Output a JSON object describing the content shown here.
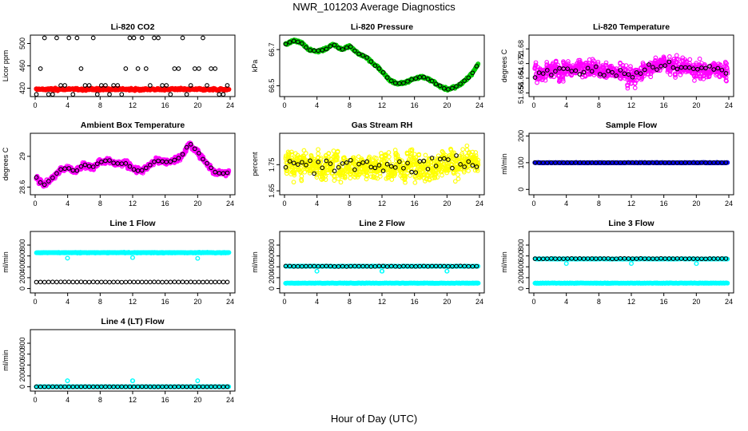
{
  "page": {
    "title": "NWR_101203  Average Diagnostics",
    "x_caption": "Hour of Day (UTC)"
  },
  "colors": {
    "black": "#000000",
    "red": "#ff0000",
    "green": "#00cc00",
    "magenta": "#ff00ff",
    "yellow": "#ffff00",
    "cyan": "#00ffff",
    "blue": "#0000ff"
  },
  "chart_data": [
    {
      "id": "co2",
      "type": "scatter",
      "title": "Li-820 CO2",
      "ylabel": "Licor ppm",
      "xlim": [
        0,
        24
      ],
      "xticks": [
        0,
        4,
        8,
        12,
        16,
        20,
        24
      ],
      "ylim": [
        405,
        515
      ],
      "yticks": [
        420,
        460,
        500
      ],
      "series": [
        {
          "name": "all",
          "color": "#ff0000",
          "mode": "band",
          "center": 418,
          "spread": 2.5,
          "density": 3
        },
        {
          "name": "avg",
          "color": "#000000",
          "mode": "levels",
          "levels": [
            409,
            425,
            455,
            510
          ],
          "step": 0.5
        }
      ]
    },
    {
      "id": "pressure",
      "type": "scatter",
      "title": "Li-820 Pressure",
      "ylabel": "kPa",
      "xlim": [
        0,
        24
      ],
      "xticks": [
        0,
        4,
        8,
        12,
        16,
        20,
        24
      ],
      "ylim": [
        66.44,
        66.78
      ],
      "yticks": [
        66.5,
        66.7
      ],
      "series": [
        {
          "name": "all",
          "color": "#00cc00",
          "mode": "curve",
          "noise": 0.008,
          "density": 3,
          "knots": [
            [
              0.3,
              66.73
            ],
            [
              1,
              66.75
            ],
            [
              2,
              66.74
            ],
            [
              3,
              66.7
            ],
            [
              4,
              66.69
            ],
            [
              5,
              66.7
            ],
            [
              6,
              66.73
            ],
            [
              7,
              66.7
            ],
            [
              8,
              66.72
            ],
            [
              9,
              66.68
            ],
            [
              10,
              66.66
            ],
            [
              11,
              66.62
            ],
            [
              12,
              66.58
            ],
            [
              13,
              66.53
            ],
            [
              14,
              66.51
            ],
            [
              15,
              66.52
            ],
            [
              16,
              66.54
            ],
            [
              17,
              66.55
            ],
            [
              18,
              66.53
            ],
            [
              19,
              66.5
            ],
            [
              20,
              66.48
            ],
            [
              21,
              66.49
            ],
            [
              22,
              66.52
            ],
            [
              23,
              66.56
            ],
            [
              23.8,
              66.62
            ]
          ]
        },
        {
          "name": "avg",
          "color": "#000000",
          "mode": "curve",
          "noise": 0.004,
          "density": 1,
          "step": 0.5,
          "knots": [
            [
              0.3,
              66.73
            ],
            [
              1,
              66.75
            ],
            [
              2,
              66.74
            ],
            [
              3,
              66.7
            ],
            [
              4,
              66.69
            ],
            [
              5,
              66.7
            ],
            [
              6,
              66.73
            ],
            [
              7,
              66.7
            ],
            [
              8,
              66.72
            ],
            [
              9,
              66.68
            ],
            [
              10,
              66.66
            ],
            [
              11,
              66.62
            ],
            [
              12,
              66.58
            ],
            [
              13,
              66.53
            ],
            [
              14,
              66.51
            ],
            [
              15,
              66.52
            ],
            [
              16,
              66.54
            ],
            [
              17,
              66.55
            ],
            [
              18,
              66.53
            ],
            [
              19,
              66.5
            ],
            [
              20,
              66.48
            ],
            [
              21,
              66.49
            ],
            [
              22,
              66.52
            ],
            [
              23,
              66.56
            ],
            [
              23.8,
              66.62
            ]
          ]
        }
      ]
    },
    {
      "id": "li820temp",
      "type": "scatter",
      "title": "Li-820 Temperature",
      "ylabel": "degrees C",
      "xlim": [
        0,
        24
      ],
      "xticks": [
        0,
        4,
        8,
        12,
        16,
        20,
        24
      ],
      "ylim": [
        51.654,
        51.6875
      ],
      "yticks": [
        51.656,
        51.664,
        51.672,
        51.68
      ],
      "yticklabels": [
        "51.656",
        "51.664",
        "51.672",
        "51.68"
      ],
      "series": [
        {
          "name": "all",
          "color": "#ff00ff",
          "mode": "curve",
          "noise": 0.0065,
          "density": 2.5,
          "knots": [
            [
              0,
              51.667
            ],
            [
              4,
              51.669
            ],
            [
              8,
              51.668
            ],
            [
              12,
              51.666
            ],
            [
              16,
              51.672
            ],
            [
              20,
              51.669
            ],
            [
              24,
              51.668
            ]
          ]
        },
        {
          "name": "avg",
          "color": "#000000",
          "mode": "curve",
          "noise": 0.004,
          "density": 1,
          "step": 0.5,
          "knots": [
            [
              0,
              51.667
            ],
            [
              4,
              51.669
            ],
            [
              8,
              51.668
            ],
            [
              12,
              51.666
            ],
            [
              16,
              51.672
            ],
            [
              20,
              51.669
            ],
            [
              24,
              51.668
            ]
          ]
        }
      ]
    },
    {
      "id": "ambient",
      "type": "scatter",
      "title": "Ambient Box Temperature",
      "ylabel": "degrees C",
      "xlim": [
        0,
        24
      ],
      "xticks": [
        0,
        4,
        8,
        12,
        16,
        20,
        24
      ],
      "ylim": [
        28.5,
        29.3
      ],
      "yticks": [
        28.6,
        29.0
      ],
      "series": [
        {
          "name": "all",
          "color": "#ff00ff",
          "mode": "curve",
          "noise": 0.045,
          "density": 4,
          "knots": [
            [
              0,
              28.75
            ],
            [
              1,
              28.62
            ],
            [
              2,
              28.7
            ],
            [
              3,
              28.82
            ],
            [
              4,
              28.85
            ],
            [
              5,
              28.8
            ],
            [
              6,
              28.9
            ],
            [
              7,
              28.85
            ],
            [
              8,
              28.93
            ],
            [
              9,
              28.95
            ],
            [
              10,
              28.9
            ],
            [
              11,
              28.92
            ],
            [
              12,
              28.85
            ],
            [
              13,
              28.8
            ],
            [
              14,
              28.88
            ],
            [
              15,
              28.95
            ],
            [
              16,
              28.92
            ],
            [
              17,
              28.95
            ],
            [
              18,
              29.0
            ],
            [
              19,
              29.18
            ],
            [
              20,
              29.05
            ],
            [
              21,
              28.92
            ],
            [
              22,
              28.8
            ],
            [
              23,
              28.78
            ],
            [
              24,
              28.8
            ]
          ]
        },
        {
          "name": "avg",
          "color": "#000000",
          "mode": "curve",
          "noise": 0.015,
          "density": 1,
          "step": 0.5,
          "knots": [
            [
              0,
              28.75
            ],
            [
              1,
              28.62
            ],
            [
              2,
              28.7
            ],
            [
              3,
              28.82
            ],
            [
              4,
              28.85
            ],
            [
              5,
              28.8
            ],
            [
              6,
              28.9
            ],
            [
              7,
              28.85
            ],
            [
              8,
              28.93
            ],
            [
              9,
              28.95
            ],
            [
              10,
              28.9
            ],
            [
              11,
              28.92
            ],
            [
              12,
              28.85
            ],
            [
              13,
              28.8
            ],
            [
              14,
              28.88
            ],
            [
              15,
              28.95
            ],
            [
              16,
              28.92
            ],
            [
              17,
              28.95
            ],
            [
              18,
              29.0
            ],
            [
              19,
              29.18
            ],
            [
              20,
              29.05
            ],
            [
              21,
              28.92
            ],
            [
              22,
              28.8
            ],
            [
              23,
              28.78
            ],
            [
              24,
              28.8
            ]
          ]
        }
      ]
    },
    {
      "id": "rh",
      "type": "scatter",
      "title": "Gas Stream RH",
      "ylabel": "percent",
      "xlim": [
        0,
        24
      ],
      "xticks": [
        0,
        4,
        8,
        12,
        16,
        20,
        24
      ],
      "ylim": [
        1.635,
        1.87
      ],
      "yticks": [
        1.65,
        1.75
      ],
      "series": [
        {
          "name": "all",
          "color": "#ffff00",
          "mode": "curve",
          "noise": 0.075,
          "density": 3,
          "knots": [
            [
              0,
              1.75
            ],
            [
              12,
              1.74
            ],
            [
              24,
              1.76
            ]
          ]
        },
        {
          "name": "avg",
          "color": "#000000",
          "mode": "curve",
          "noise": 0.045,
          "density": 1,
          "step": 0.5,
          "knots": [
            [
              0,
              1.75
            ],
            [
              12,
              1.74
            ],
            [
              24,
              1.76
            ]
          ]
        }
      ]
    },
    {
      "id": "sampleflow",
      "type": "scatter",
      "title": "Sample Flow",
      "ylabel": "ml/min",
      "xlim": [
        0,
        24
      ],
      "xticks": [
        0,
        4,
        8,
        12,
        16,
        20,
        24
      ],
      "ylim": [
        -20,
        210
      ],
      "yticks": [
        0,
        100,
        200
      ],
      "series": [
        {
          "name": "all",
          "color": "#0000ff",
          "mode": "band",
          "center": 100,
          "spread": 1,
          "density": 3
        },
        {
          "name": "avg",
          "color": "#000000",
          "mode": "band",
          "center": 100,
          "spread": 0.5,
          "density": 1,
          "step": 0.5
        }
      ]
    },
    {
      "id": "line1",
      "type": "scatter",
      "title": "Line 1 Flow",
      "ylabel": "ml/min",
      "xlim": [
        0,
        24
      ],
      "xticks": [
        0,
        4,
        8,
        12,
        16,
        20,
        24
      ],
      "ylim": [
        -80,
        1050
      ],
      "yticks": [
        0,
        200,
        400,
        600,
        800
      ],
      "series": [
        {
          "name": "line1",
          "color": "#00ffff",
          "mode": "band",
          "center": 660,
          "spread": 8,
          "density": 3,
          "spikes": [
            [
              4,
              560
            ],
            [
              12,
              570
            ],
            [
              20,
              555
            ]
          ]
        },
        {
          "name": "avg",
          "color": "#000000",
          "mode": "band",
          "center": 120,
          "spread": 4,
          "density": 1,
          "step": 0.5
        }
      ]
    },
    {
      "id": "line2",
      "type": "scatter",
      "title": "Line 2 Flow",
      "ylabel": "ml/min",
      "xlim": [
        0,
        24
      ],
      "xticks": [
        0,
        4,
        8,
        12,
        16,
        20,
        24
      ],
      "ylim": [
        -80,
        1050
      ],
      "yticks": [
        0,
        200,
        400,
        600,
        800
      ],
      "series": [
        {
          "name": "line2",
          "color": "#00ffff",
          "mode": "band",
          "center": 100,
          "spread": 4,
          "density": 3,
          "spikes": [
            [
              4,
              320
            ],
            [
              12,
              320
            ],
            [
              20,
              320
            ]
          ]
        },
        {
          "name": "line2_hi",
          "color": "#00ffff",
          "mode": "band",
          "center": 410,
          "spread": 5,
          "density": 2
        },
        {
          "name": "avg",
          "color": "#000000",
          "mode": "band",
          "center": 410,
          "spread": 6,
          "density": 1,
          "step": 0.5
        }
      ]
    },
    {
      "id": "line3",
      "type": "scatter",
      "title": "Line 3 Flow",
      "ylabel": "ml/min",
      "xlim": [
        0,
        24
      ],
      "xticks": [
        0,
        4,
        8,
        12,
        16,
        20,
        24
      ],
      "ylim": [
        -80,
        1050
      ],
      "yticks": [
        0,
        200,
        400,
        600,
        800
      ],
      "series": [
        {
          "name": "line3",
          "color": "#00ffff",
          "mode": "band",
          "center": 100,
          "spread": 4,
          "density": 3
        },
        {
          "name": "line3_hi",
          "color": "#00ffff",
          "mode": "band",
          "center": 545,
          "spread": 8,
          "density": 2,
          "spikes": [
            [
              4,
              460
            ],
            [
              12,
              460
            ],
            [
              20,
              460
            ]
          ]
        },
        {
          "name": "avg",
          "color": "#000000",
          "mode": "band",
          "center": 550,
          "spread": 6,
          "density": 1,
          "step": 0.5
        }
      ]
    },
    {
      "id": "line4",
      "type": "scatter",
      "title": "Line 4 (LT) Flow",
      "ylabel": "ml/min",
      "xlim": [
        0,
        24
      ],
      "xticks": [
        0,
        4,
        8,
        12,
        16,
        20,
        24
      ],
      "ylim": [
        -80,
        1050
      ],
      "yticks": [
        0,
        200,
        400,
        600,
        800
      ],
      "series": [
        {
          "name": "line4",
          "color": "#00ffff",
          "mode": "band",
          "center": 0,
          "spread": 3,
          "density": 3,
          "spikes": [
            [
              4,
              110
            ],
            [
              12,
              110
            ],
            [
              20,
              110
            ]
          ]
        },
        {
          "name": "avg",
          "color": "#000000",
          "mode": "band",
          "center": 0,
          "spread": 2,
          "density": 1,
          "step": 0.5
        }
      ]
    }
  ]
}
